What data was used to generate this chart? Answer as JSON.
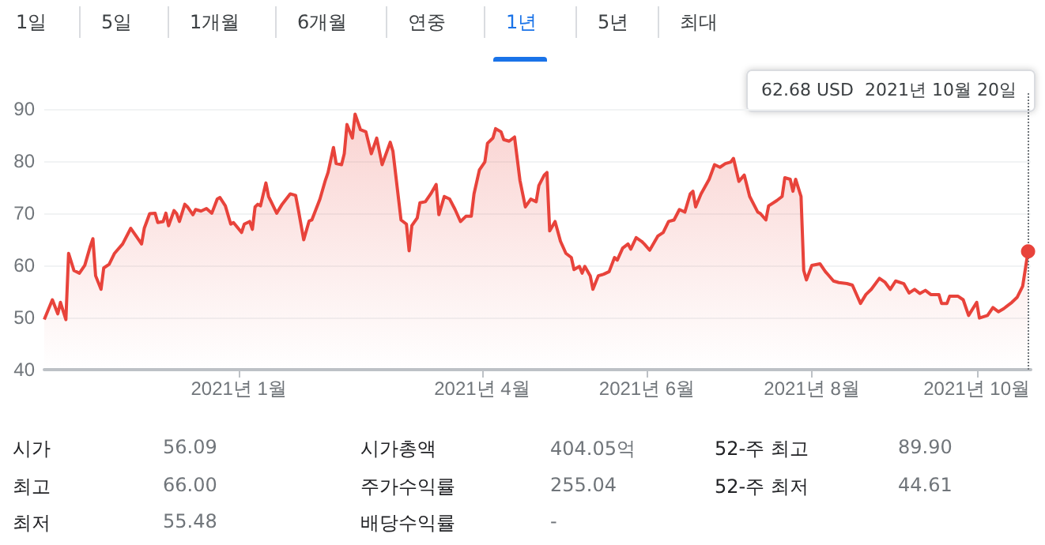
{
  "chart_data": {
    "type": "area",
    "color": "#e8433b",
    "marker": "none",
    "grid": "y",
    "xlim": [
      "2020-10-21",
      "2021-10-21"
    ],
    "xticks": [
      {
        "value": "2021-01-01",
        "label": "2021년 1월"
      },
      {
        "value": "2021-04-01",
        "label": "2021년 4월"
      },
      {
        "value": "2021-06-01",
        "label": "2021년 6월"
      },
      {
        "value": "2021-08-01",
        "label": "2021년 8월"
      },
      {
        "value": "2021-10-01",
        "label": "2021년 10월"
      }
    ],
    "ylim": [
      40,
      93
    ],
    "yticks": [
      40,
      50,
      60,
      70,
      80,
      90
    ],
    "x": [
      "2020-10-21",
      "2020-10-24",
      "2020-10-26",
      "2020-10-27",
      "2020-10-29",
      "2020-10-30",
      "2020-11-01",
      "2020-11-03",
      "2020-11-05",
      "2020-11-07",
      "2020-11-08",
      "2020-11-09",
      "2020-11-11",
      "2020-11-12",
      "2020-11-14",
      "2020-11-16",
      "2020-11-17",
      "2020-11-19",
      "2020-11-22",
      "2020-11-24",
      "2020-11-26",
      "2020-11-27",
      "2020-11-29",
      "2020-12-01",
      "2020-12-02",
      "2020-12-04",
      "2020-12-05",
      "2020-12-06",
      "2020-12-08",
      "2020-12-09",
      "2020-12-10",
      "2020-12-12",
      "2020-12-13",
      "2020-12-15",
      "2020-12-16",
      "2020-12-18",
      "2020-12-20",
      "2020-12-22",
      "2020-12-24",
      "2020-12-25",
      "2020-12-27",
      "2020-12-29",
      "2020-12-30",
      "2021-01-02",
      "2021-01-03",
      "2021-01-05",
      "2021-01-06",
      "2021-01-07",
      "2021-01-08",
      "2021-01-09",
      "2021-01-11",
      "2021-01-12",
      "2021-01-15",
      "2021-01-17",
      "2021-01-20",
      "2021-01-22",
      "2021-01-23",
      "2021-01-25",
      "2021-01-27",
      "2021-01-28",
      "2021-01-31",
      "2021-02-02",
      "2021-02-03",
      "2021-02-05",
      "2021-02-06",
      "2021-02-08",
      "2021-02-09",
      "2021-02-10",
      "2021-02-12",
      "2021-02-13",
      "2021-02-15",
      "2021-02-17",
      "2021-02-19",
      "2021-02-21",
      "2021-02-23",
      "2021-02-26",
      "2021-02-27",
      "2021-03-02",
      "2021-03-04",
      "2021-03-05",
      "2021-03-06",
      "2021-03-08",
      "2021-03-09",
      "2021-03-11",
      "2021-03-13",
      "2021-03-15",
      "2021-03-16",
      "2021-03-18",
      "2021-03-20",
      "2021-03-22",
      "2021-03-24",
      "2021-03-26",
      "2021-03-28",
      "2021-03-29",
      "2021-03-31",
      "2021-04-02",
      "2021-04-03",
      "2021-04-05",
      "2021-04-06",
      "2021-04-08",
      "2021-04-09",
      "2021-04-11",
      "2021-04-13",
      "2021-04-15",
      "2021-04-17",
      "2021-04-19",
      "2021-04-21",
      "2021-04-22",
      "2021-04-24",
      "2021-04-25",
      "2021-04-26",
      "2021-04-28",
      "2021-04-30",
      "2021-05-02",
      "2021-05-04",
      "2021-05-05",
      "2021-05-07",
      "2021-05-08",
      "2021-05-09",
      "2021-05-11",
      "2021-05-12",
      "2021-05-14",
      "2021-05-16",
      "2021-05-18",
      "2021-05-20",
      "2021-05-21",
      "2021-05-23",
      "2021-05-25",
      "2021-05-26",
      "2021-05-28",
      "2021-05-30",
      "2021-05-31",
      "2021-06-02",
      "2021-06-05",
      "2021-06-07",
      "2021-06-09",
      "2021-06-11",
      "2021-06-13",
      "2021-06-15",
      "2021-06-17",
      "2021-06-18",
      "2021-06-19",
      "2021-06-21",
      "2021-06-24",
      "2021-06-26",
      "2021-06-28",
      "2021-06-30",
      "2021-07-02",
      "2021-07-03",
      "2021-07-05",
      "2021-07-07",
      "2021-07-09",
      "2021-07-12",
      "2021-07-13",
      "2021-07-15",
      "2021-07-16",
      "2021-07-19",
      "2021-07-21",
      "2021-07-22",
      "2021-07-24",
      "2021-07-25",
      "2021-07-26",
      "2021-07-28",
      "2021-07-29",
      "2021-07-30",
      "2021-08-01",
      "2021-08-04",
      "2021-08-06",
      "2021-08-07",
      "2021-08-09",
      "2021-08-11",
      "2021-08-14",
      "2021-08-16",
      "2021-08-19",
      "2021-08-21",
      "2021-08-23",
      "2021-08-26",
      "2021-08-28",
      "2021-08-30",
      "2021-09-01",
      "2021-09-04",
      "2021-09-06",
      "2021-09-08",
      "2021-09-10",
      "2021-09-12",
      "2021-09-14",
      "2021-09-17",
      "2021-09-18",
      "2021-09-20",
      "2021-09-21",
      "2021-09-24",
      "2021-09-26",
      "2021-09-28",
      "2021-10-01",
      "2021-10-02",
      "2021-10-05",
      "2021-10-07",
      "2021-10-09",
      "2021-10-11",
      "2021-10-14",
      "2021-10-16",
      "2021-10-18",
      "2021-10-20"
    ],
    "values": [
      49.6,
      53.4,
      50.7,
      52.9,
      49.6,
      62.3,
      59.0,
      58.5,
      60.0,
      63.6,
      65.1,
      58.0,
      55.4,
      59.5,
      60.2,
      62.3,
      62.9,
      64.1,
      67.1,
      65.6,
      64.1,
      67.1,
      69.9,
      70.0,
      68.2,
      68.4,
      70.0,
      67.6,
      70.5,
      69.9,
      68.4,
      71.7,
      71.2,
      69.7,
      70.7,
      70.4,
      70.9,
      70.0,
      72.7,
      73.0,
      71.4,
      67.9,
      68.2,
      66.3,
      67.9,
      68.4,
      66.9,
      71.2,
      71.7,
      71.4,
      75.8,
      73.2,
      70.0,
      71.7,
      73.7,
      73.4,
      70.7,
      64.9,
      68.5,
      68.7,
      72.7,
      76.3,
      77.8,
      82.6,
      79.5,
      79.3,
      81.4,
      87.0,
      84.4,
      89.0,
      86.0,
      85.6,
      81.4,
      84.4,
      79.3,
      83.6,
      81.9,
      68.7,
      67.9,
      62.8,
      67.6,
      69.1,
      72.0,
      72.2,
      73.7,
      75.5,
      69.7,
      73.2,
      72.7,
      70.7,
      68.4,
      69.4,
      69.4,
      73.7,
      78.3,
      79.8,
      83.4,
      84.4,
      86.2,
      85.6,
      84.1,
      83.8,
      84.6,
      76.3,
      71.2,
      72.7,
      72.2,
      75.3,
      77.3,
      77.8,
      66.6,
      68.4,
      64.6,
      62.3,
      61.5,
      59.2,
      59.8,
      58.5,
      59.8,
      58.0,
      55.4,
      58.0,
      58.3,
      58.8,
      61.5,
      61.0,
      63.3,
      64.1,
      63.1,
      65.3,
      64.6,
      64.1,
      62.9,
      65.6,
      66.3,
      68.4,
      68.7,
      70.7,
      70.2,
      73.7,
      74.2,
      71.2,
      73.7,
      76.5,
      79.3,
      78.8,
      79.5,
      79.8,
      80.5,
      76.1,
      77.3,
      73.2,
      70.2,
      69.9,
      68.7,
      71.4,
      72.4,
      73.2,
      76.8,
      76.5,
      74.2,
      76.5,
      73.2,
      59.0,
      57.2,
      60.0,
      60.3,
      58.8,
      58.2,
      57.0,
      56.7,
      56.5,
      56.2,
      52.7,
      54.4,
      55.4,
      57.5,
      56.8,
      55.4,
      57.0,
      56.5,
      54.7,
      55.4,
      54.6,
      55.2,
      54.4,
      54.4,
      52.7,
      52.7,
      54.1,
      54.1,
      53.4,
      50.4,
      52.9,
      49.9,
      50.4,
      51.9,
      51.1,
      51.7,
      52.9,
      53.9,
      56.0,
      62.68
    ],
    "ref_lines": [
      {
        "axis": "x",
        "value": "2021-10-20",
        "color": "#70757a",
        "line_style": "dotted"
      }
    ],
    "annotations": [
      "1일",
      "5일",
      "1개월",
      "6개월",
      "연중",
      "1년",
      "5년",
      "최대",
      "62.68 USD  2021년 10월 20일",
      "시가",
      "56.09",
      "시가총액",
      "404.05억",
      "52-주 최고",
      "89.90",
      "최고",
      "66.00",
      "주가수익률",
      "255.04",
      "52-주 최저",
      "44.61",
      "최저",
      "55.48",
      "배당수익률",
      "-"
    ]
  }
}
